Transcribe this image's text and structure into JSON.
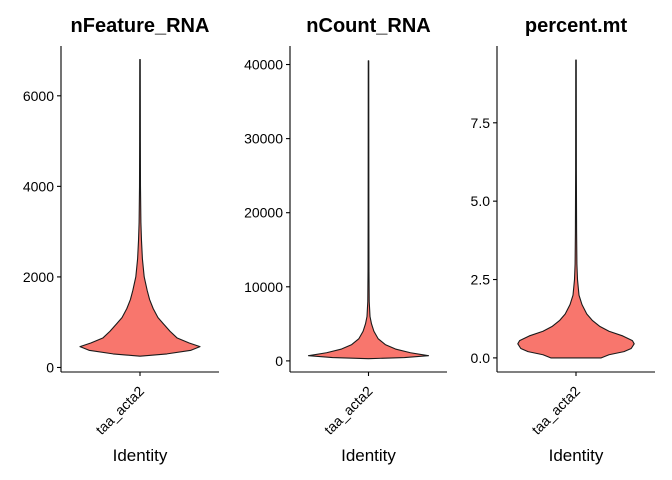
{
  "chart_data": [
    {
      "type": "violin",
      "title": "nFeature_RNA",
      "xlabel": "Identity",
      "ylabel": "",
      "categories": [
        "taa_acta2"
      ],
      "fill_color": "#F8766D",
      "ylim": [
        -100,
        7100
      ],
      "yticks": [
        0,
        2000,
        4000,
        6000
      ],
      "ytick_labels": [
        "0",
        "2000",
        "4000",
        "6000"
      ],
      "min": 250,
      "max": 6800,
      "density_profile": [
        [
          250,
          0.0
        ],
        [
          300,
          0.45
        ],
        [
          380,
          0.85
        ],
        [
          460,
          1.0
        ],
        [
          540,
          0.82
        ],
        [
          650,
          0.62
        ],
        [
          800,
          0.5
        ],
        [
          950,
          0.4
        ],
        [
          1100,
          0.3
        ],
        [
          1300,
          0.22
        ],
        [
          1500,
          0.16
        ],
        [
          1700,
          0.12
        ],
        [
          2000,
          0.07
        ],
        [
          2400,
          0.04
        ],
        [
          2800,
          0.025
        ],
        [
          3200,
          0.015
        ],
        [
          4000,
          0.008
        ],
        [
          5000,
          0.006
        ],
        [
          6000,
          0.005
        ],
        [
          6800,
          0.004
        ]
      ]
    },
    {
      "type": "violin",
      "title": "nCount_RNA",
      "xlabel": "Identity",
      "ylabel": "",
      "categories": [
        "taa_acta2"
      ],
      "fill_color": "#F8766D",
      "ylim": [
        -1500,
        42500
      ],
      "yticks": [
        0,
        10000,
        20000,
        30000,
        40000
      ],
      "ytick_labels": [
        "0",
        "10000",
        "20000",
        "30000",
        "40000"
      ],
      "min": 300,
      "max": 40500,
      "density_profile": [
        [
          300,
          0.0
        ],
        [
          450,
          0.6
        ],
        [
          700,
          1.0
        ],
        [
          1100,
          0.7
        ],
        [
          1600,
          0.45
        ],
        [
          2200,
          0.28
        ],
        [
          3000,
          0.16
        ],
        [
          4000,
          0.09
        ],
        [
          5000,
          0.05
        ],
        [
          6000,
          0.025
        ],
        [
          8000,
          0.012
        ],
        [
          12000,
          0.008
        ],
        [
          20000,
          0.006
        ],
        [
          30000,
          0.005
        ],
        [
          40500,
          0.004
        ]
      ]
    },
    {
      "type": "violin",
      "title": "percent.mt",
      "xlabel": "Identity",
      "ylabel": "",
      "categories": [
        "taa_acta2"
      ],
      "fill_color": "#F8766D",
      "ylim": [
        -0.45,
        9.95
      ],
      "yticks": [
        0.0,
        2.5,
        5.0,
        7.5
      ],
      "ytick_labels": [
        "0.0",
        "2.5",
        "5.0",
        "7.5"
      ],
      "min": 0.0,
      "max": 9.5,
      "density_profile": [
        [
          0.0,
          0.42
        ],
        [
          0.1,
          0.55
        ],
        [
          0.2,
          0.8
        ],
        [
          0.3,
          0.92
        ],
        [
          0.45,
          0.97
        ],
        [
          0.55,
          0.94
        ],
        [
          0.7,
          0.78
        ],
        [
          0.85,
          0.55
        ],
        [
          1.0,
          0.4
        ],
        [
          1.2,
          0.27
        ],
        [
          1.4,
          0.18
        ],
        [
          1.7,
          0.1
        ],
        [
          2.0,
          0.05
        ],
        [
          2.5,
          0.025
        ],
        [
          3.0,
          0.015
        ],
        [
          4.0,
          0.01
        ],
        [
          6.0,
          0.006
        ],
        [
          8.0,
          0.005
        ],
        [
          9.5,
          0.004
        ]
      ]
    }
  ]
}
